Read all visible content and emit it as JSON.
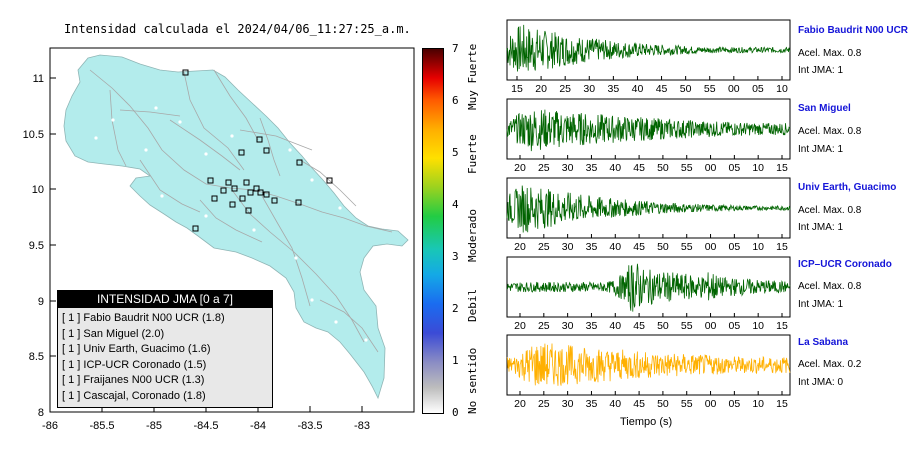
{
  "map": {
    "title": "Intensidad calculada el 2024/04/06_11:27:25_a.m.",
    "x_ticks": [
      "-86",
      "-85.5",
      "-85",
      "-84.5",
      "-84",
      "-83.5",
      "-83"
    ],
    "y_ticks": [
      "11",
      "10.5",
      "10",
      "9.5",
      "9",
      "8.5",
      "8"
    ],
    "colors": {
      "land": "#b3ecec",
      "roads": "#a8a8a8",
      "frame": "#000000"
    }
  },
  "colorbar": {
    "ticks": [
      "0",
      "1",
      "2",
      "3",
      "4",
      "5",
      "6",
      "7"
    ],
    "labels": [
      "No sentido",
      "Debil",
      "Moderado",
      "Fuerte",
      "Muy Fuerte"
    ]
  },
  "legend": {
    "title": "INTENSIDAD JMA [0 a 7]",
    "items": [
      "[ 1 ]  Fabio Baudrit N00 UCR (1.8)",
      "[ 1 ]  San Miguel (2.0)",
      "[ 1 ]  Univ Earth, Guacimo (1.6)",
      "[ 1 ]  ICP-UCR Coronado (1.5)",
      "[ 1 ]  Fraijanes N00 UCR (1.3)",
      "[ 1 ]  Cascajal, Coronado (1.8)"
    ]
  },
  "stations": [
    {
      "name": "Fabio Baudrit N00 UCR",
      "acel": "Acel. Max. 0.8",
      "int": "Int JMA: 1",
      "color": "#006400",
      "ticks": [
        "15",
        "20",
        "25",
        "30",
        "35",
        "40",
        "45",
        "50",
        "55",
        "00",
        "05",
        "10"
      ]
    },
    {
      "name": "San Miguel",
      "acel": "Acel. Max. 0.8",
      "int": "Int JMA: 1",
      "color": "#006400",
      "ticks": [
        "20",
        "25",
        "30",
        "35",
        "40",
        "45",
        "50",
        "55",
        "00",
        "05",
        "10",
        "15"
      ]
    },
    {
      "name": "Univ Earth, Guacimo",
      "acel": "Acel. Max. 0.8",
      "int": "Int JMA: 1",
      "color": "#006400",
      "ticks": [
        "20",
        "25",
        "30",
        "35",
        "40",
        "45",
        "50",
        "55",
        "00",
        "05",
        "10",
        "15"
      ]
    },
    {
      "name": "ICP–UCR Coronado",
      "acel": "Acel. Max. 0.8",
      "int": "Int JMA: 1",
      "color": "#006400",
      "ticks": [
        "20",
        "25",
        "30",
        "35",
        "40",
        "45",
        "50",
        "55",
        "00",
        "05",
        "10",
        "15"
      ]
    },
    {
      "name": "La Sabana",
      "acel": "Acel. Max. 0.2",
      "int": "Int JMA: 0",
      "color": "#ffb000",
      "ticks": [
        "20",
        "25",
        "30",
        "35",
        "40",
        "45",
        "50",
        "55",
        "00",
        "05",
        "10",
        "15"
      ]
    }
  ],
  "time_axis_label": "Tiempo (s)"
}
